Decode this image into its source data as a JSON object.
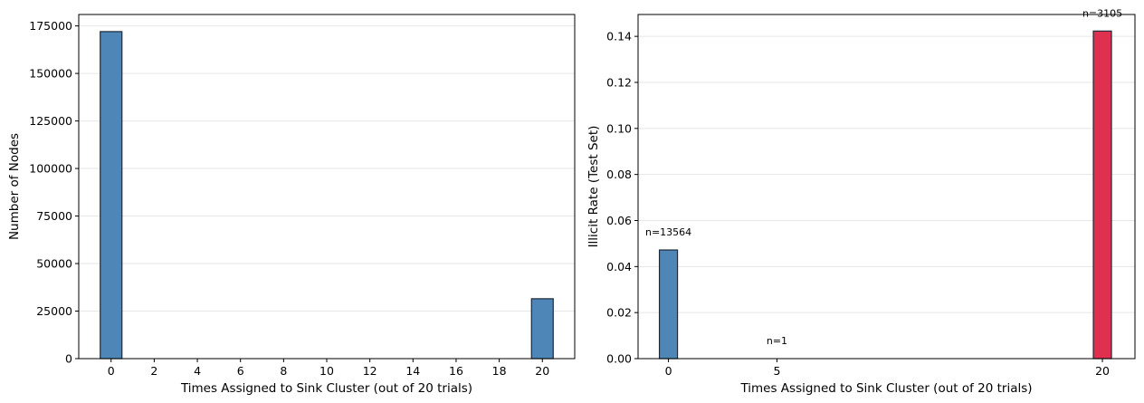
{
  "chart_data": [
    {
      "type": "bar",
      "xlabel": "Times Assigned to Sink Cluster (out of 20 trials)",
      "ylabel": "Number of Nodes",
      "xticks": [
        0,
        2,
        4,
        6,
        8,
        10,
        12,
        14,
        16,
        18,
        20
      ],
      "yticks": [
        0,
        25000,
        50000,
        75000,
        100000,
        125000,
        150000,
        175000
      ],
      "xlim": [
        -1.5,
        21.5
      ],
      "ylim": [
        0,
        181000
      ],
      "grid": "y",
      "bars": [
        {
          "x": 0,
          "value": 172000,
          "color": "#4f86b8"
        },
        {
          "x": 20,
          "value": 31500,
          "color": "#4f86b8"
        }
      ]
    },
    {
      "type": "bar",
      "xlabel": "Times Assigned to Sink Cluster (out of 20 trials)",
      "ylabel": "Illicit Rate (Test Set)",
      "xticks": [
        0,
        5,
        20
      ],
      "yticks": [
        0.0,
        0.02,
        0.04,
        0.06,
        0.08,
        0.1,
        0.12,
        0.14
      ],
      "ytick_labels": [
        "0.00",
        "0.02",
        "0.04",
        "0.06",
        "0.08",
        "0.10",
        "0.12",
        "0.14"
      ],
      "xlim": [
        -1.4,
        21.5
      ],
      "ylim": [
        0,
        0.1495
      ],
      "grid": "y",
      "bars": [
        {
          "x": 0,
          "value": 0.0472,
          "color": "#4f86b8",
          "annotation": "n=13564"
        },
        {
          "x": 5,
          "value": 0.0,
          "color": "#4f86b8",
          "annotation": "n=1"
        },
        {
          "x": 20,
          "value": 0.1423,
          "color": "#e0304f",
          "annotation": "n=3105"
        }
      ]
    }
  ]
}
